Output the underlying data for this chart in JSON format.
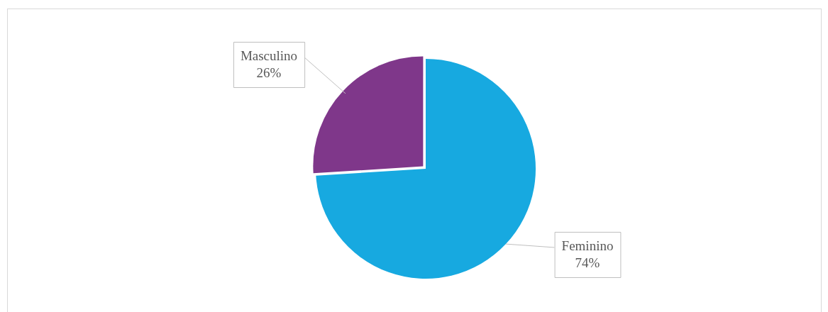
{
  "chart_data": {
    "type": "pie",
    "categories": [
      "Feminino",
      "Masculino"
    ],
    "values": [
      74,
      26
    ],
    "colors": [
      "#17a9e0",
      "#7f378a"
    ],
    "value_labels": [
      "74%",
      "26%"
    ],
    "legend": false
  }
}
